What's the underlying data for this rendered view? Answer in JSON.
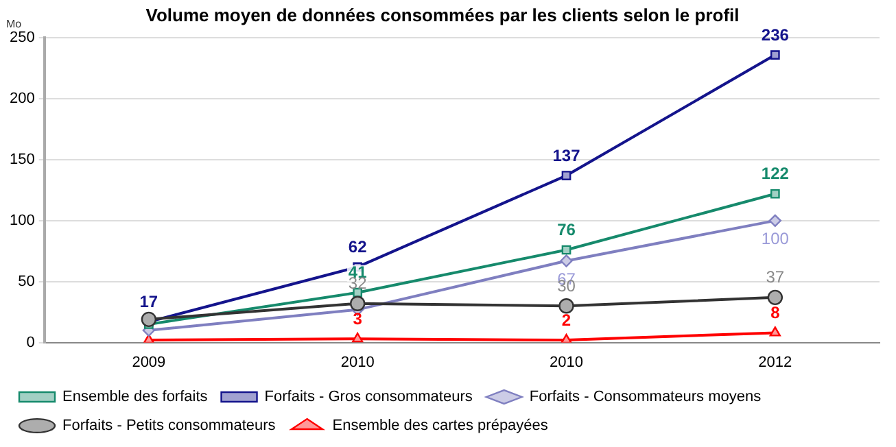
{
  "chart_data": {
    "type": "line",
    "title": "Volume moyen de données consommées par les clients selon le profil",
    "ylabel": "Mo",
    "categories": [
      "2009",
      "2010",
      "2010",
      "2012"
    ],
    "series": [
      {
        "name": "Ensemble des forfaits",
        "color": "#168a6c",
        "marker": "square",
        "values": [
          15,
          41,
          76,
          122
        ],
        "value_labels": [
          null,
          "41",
          "76",
          "122"
        ]
      },
      {
        "name": "Forfaits - Gros consommateurs",
        "color": "#14148c",
        "marker": "square",
        "values": [
          17,
          62,
          137,
          236
        ],
        "value_labels": [
          "17",
          "62",
          "137",
          "236"
        ]
      },
      {
        "name": "Forfaits - Consommateurs moyens",
        "color": "#7f7fc0",
        "marker": "diamond",
        "values": [
          10,
          27,
          67,
          100
        ],
        "value_labels": [
          null,
          null,
          "67",
          "100"
        ]
      },
      {
        "name": "Forfaits - Petits consommateurs",
        "color": "#333333",
        "marker": "circle",
        "values": [
          19,
          32,
          30,
          37
        ],
        "value_labels": [
          null,
          "32",
          "30",
          "37"
        ]
      },
      {
        "name": "Ensemble des cartes prépayées",
        "color": "#ff0000",
        "marker": "triangle",
        "values": [
          2,
          3,
          2,
          8
        ],
        "value_labels": [
          null,
          "3",
          "2",
          "8"
        ]
      }
    ],
    "ylim": [
      0,
      250
    ],
    "yticks": [
      0,
      50,
      100,
      150,
      200,
      250
    ],
    "grid": "y",
    "legend": "bottom",
    "line_style": "solid"
  }
}
